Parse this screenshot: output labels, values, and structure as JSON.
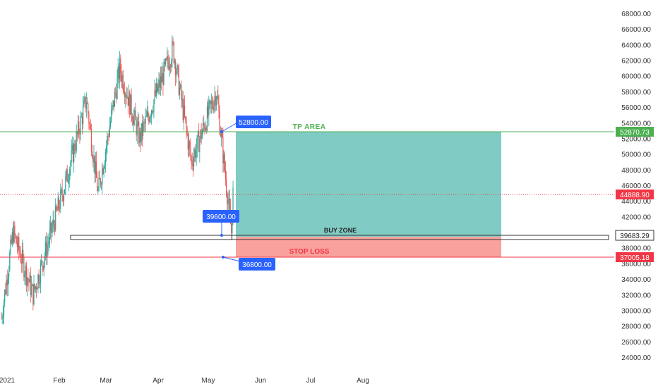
{
  "chart_data": {
    "type": "candlestick",
    "symbol_hint": "",
    "price_axis": {
      "ticks": [
        "68000.00",
        "66000.00",
        "64000.00",
        "62000.00",
        "60000.00",
        "58000.00",
        "56000.00",
        "54000.00",
        "52000.00",
        "50000.00",
        "48000.00",
        "46000.00",
        "44000.00",
        "42000.00",
        "40000.00",
        "38000.00",
        "36000.00",
        "34000.00",
        "32000.00",
        "30000.00",
        "28000.00",
        "26000.00",
        "24000.00"
      ],
      "min": 24000,
      "max": 68000
    },
    "time_axis": {
      "ticks": [
        "2021",
        "Feb",
        "Mar",
        "Apr",
        "May",
        "Jun",
        "Jul",
        "Aug"
      ]
    },
    "levels": {
      "tp_price": "52870.73",
      "last_price": "44888.90",
      "buy_zone_price": "39683.29",
      "stop_loss_price": "37005.18"
    },
    "annotations": {
      "tp_label": "TP AREA",
      "buy_zone_label": "BUY ZONE",
      "stop_loss_label": "STOP LOSS",
      "callout_tp": "52800.00",
      "callout_entry": "39600.00",
      "callout_sl": "36800.00"
    },
    "key_closes": [
      {
        "date": "2021-01-01",
        "price": 29000
      },
      {
        "date": "2021-01-08",
        "price": 40000
      },
      {
        "date": "2021-01-20",
        "price": 32000
      },
      {
        "date": "2021-02-08",
        "price": 46000
      },
      {
        "date": "2021-02-21",
        "price": 57000
      },
      {
        "date": "2021-02-28",
        "price": 45000
      },
      {
        "date": "2021-03-13",
        "price": 61000
      },
      {
        "date": "2021-03-25",
        "price": 52000
      },
      {
        "date": "2021-04-14",
        "price": 63500
      },
      {
        "date": "2021-04-25",
        "price": 49000
      },
      {
        "date": "2021-05-10",
        "price": 58000
      },
      {
        "date": "2021-05-19",
        "price": 40000
      },
      {
        "date": "2021-05-20",
        "price": 44888.9
      }
    ]
  },
  "colors": {
    "up": "#26a69a",
    "down": "#ef5350",
    "tp_line": "#4caf50",
    "sl_line": "#f23645",
    "target_zone": "#80cbc4",
    "stop_zone": "#f8a19d",
    "callout": "#2962ff",
    "price_tag_last": "#f23645"
  }
}
